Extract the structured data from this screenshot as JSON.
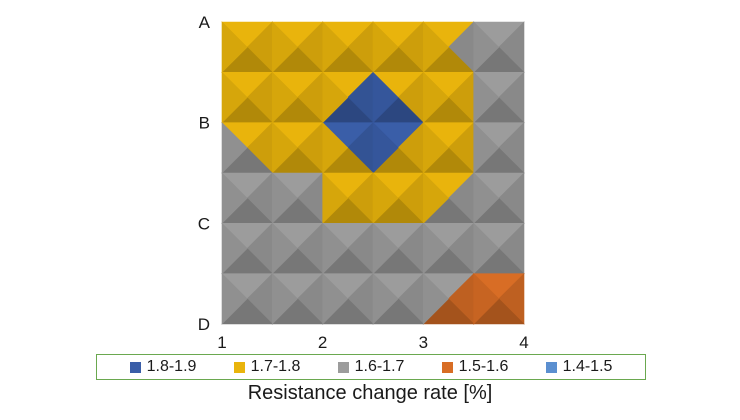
{
  "chart_data": {
    "type": "heatmap",
    "title": "",
    "xlabel": "Resistance change rate [%]",
    "ylabel": "",
    "x_ticks": [
      "1",
      "2",
      "3",
      "4"
    ],
    "y_ticks": [
      "A",
      "B",
      "C",
      "D"
    ],
    "xlim": [
      1,
      4
    ],
    "legend_position": "bottom",
    "bands": [
      {
        "name": "1.8-1.9",
        "color": "#3a5ea8"
      },
      {
        "name": "1.7-1.8",
        "color": "#e9b40c"
      },
      {
        "name": "1.6-1.7",
        "color": "#9c9c9c"
      },
      {
        "name": "1.5-1.6",
        "color": "#d86d25"
      },
      {
        "name": "1.4-1.5",
        "color": "#5b8fd0"
      }
    ],
    "grid": {
      "x": [
        1,
        1.5,
        2,
        2.5,
        3,
        3.5,
        4
      ],
      "rows": [
        {
          "y": "A",
          "values": [
            1.75,
            1.75,
            1.75,
            1.75,
            1.74,
            1.66,
            1.63
          ]
        },
        {
          "y": "A-B",
          "values": [
            1.74,
            1.74,
            1.76,
            1.82,
            1.76,
            1.71,
            1.64
          ]
        },
        {
          "y": "B",
          "values": [
            1.71,
            1.73,
            1.79,
            1.86,
            1.82,
            1.71,
            1.65
          ]
        },
        {
          "y": "B-C",
          "values": [
            1.66,
            1.68,
            1.72,
            1.77,
            1.73,
            1.69,
            1.64
          ]
        },
        {
          "y": "C",
          "values": [
            1.63,
            1.64,
            1.68,
            1.71,
            1.69,
            1.66,
            1.62
          ]
        },
        {
          "y": "C-D",
          "values": [
            1.63,
            1.63,
            1.64,
            1.65,
            1.64,
            1.62,
            1.59
          ]
        },
        {
          "y": "D",
          "values": [
            1.62,
            1.62,
            1.62,
            1.62,
            1.6,
            1.57,
            1.55
          ]
        }
      ]
    }
  }
}
